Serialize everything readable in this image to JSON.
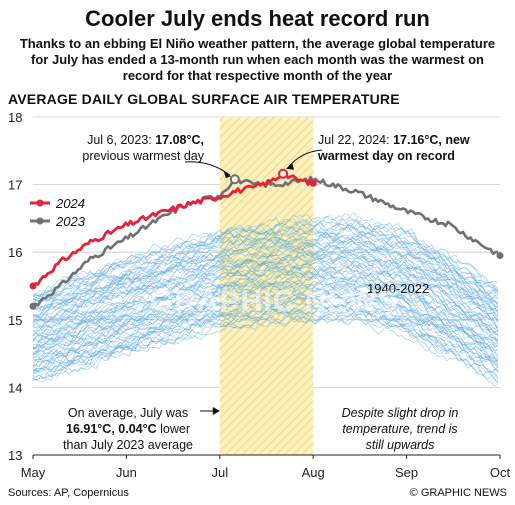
{
  "title": "Cooler July ends heat record run",
  "subtitle": "Thanks to an ebbing El Niño weather pattern, the average global temperature for July has ended a 13-month run when each month was the warmest on record for that respective month of the year",
  "chart_heading": "AVERAGE DAILY GLOBAL SURFACE AIR TEMPERATURE",
  "source": "Sources: AP, Copernicus",
  "credit": "© GRAPHIC NEWS",
  "watermark": "GRAPHIC NEWS",
  "colors": {
    "y2024": "#e8203a",
    "y2023": "#707070",
    "historic": "#5aa7da",
    "july_band": "#f5e08a"
  },
  "annotations": {
    "jul6_a": "Jul 6, 2023: ",
    "jul6_b": "17.08°C,",
    "jul6_c": "previous warmest day",
    "jul22_a": "Jul 22, 2024: ",
    "jul22_b": "17.16°C, new",
    "jul22_c": "warmest day on record",
    "avg_a": "On average, July was",
    "avg_b": "16.91°C, 0.04°C",
    "avg_c": "lower",
    "avg_d": "than July 2023 average",
    "trend_a": "Despite slight drop in",
    "trend_b": "temperature, trend is",
    "trend_c": "still upwards",
    "historic_label": "1940-2022"
  },
  "chart_data": {
    "type": "line",
    "x_ticks": [
      "May",
      "Jun",
      "Jul",
      "Aug",
      "Sep",
      "Oct"
    ],
    "y_ticks": [
      13,
      14,
      15,
      16,
      17,
      18
    ],
    "ylim": [
      13,
      18
    ],
    "legend_position": "top-left",
    "highlight_band": {
      "from": "Jul",
      "to": "Aug"
    },
    "series": [
      {
        "name": "2024",
        "color": "#e8203a",
        "x": [
          "May 1",
          "May 10",
          "May 20",
          "Jun 1",
          "Jun 10",
          "Jun 20",
          "Jul 1",
          "Jul 6",
          "Jul 12",
          "Jul 18",
          "Jul 22",
          "Jul 26",
          "Aug 1"
        ],
        "y": [
          15.5,
          15.85,
          16.15,
          16.4,
          16.55,
          16.7,
          16.82,
          16.9,
          16.95,
          17.05,
          17.16,
          17.08,
          17.02
        ]
      },
      {
        "name": "2023",
        "color": "#707070",
        "x": [
          "May 1",
          "May 10",
          "May 20",
          "Jun 1",
          "Jun 10",
          "Jun 20",
          "Jul 1",
          "Jul 6",
          "Jul 12",
          "Jul 20",
          "Aug 1",
          "Aug 15",
          "Sep 1",
          "Sep 15",
          "Oct 1"
        ],
        "y": [
          15.2,
          15.5,
          15.9,
          16.2,
          16.45,
          16.7,
          16.85,
          17.08,
          17.0,
          17.0,
          17.08,
          16.9,
          16.6,
          16.4,
          15.95
        ]
      },
      {
        "name": "1940-2022",
        "color": "#5aa7da",
        "x": [
          "May 1",
          "Jun 1",
          "Jul 1",
          "Jul 25",
          "Aug 15",
          "Sep 1",
          "Oct 1"
        ],
        "y_low": [
          14.1,
          14.5,
          14.9,
          15.0,
          15.0,
          14.8,
          14.1
        ],
        "y_high": [
          15.4,
          15.9,
          16.3,
          16.45,
          16.5,
          16.3,
          15.5
        ]
      }
    ]
  }
}
